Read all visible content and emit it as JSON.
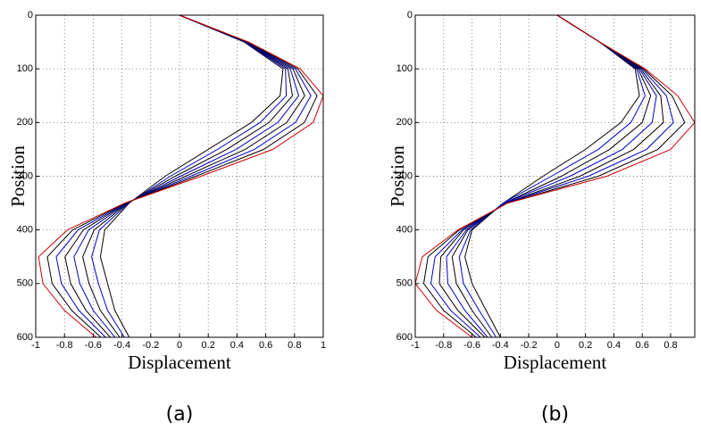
{
  "chart_data": [
    {
      "type": "line",
      "caption": "(a)",
      "x_label": "Displacement",
      "y_label": "Position",
      "y": [
        0,
        50,
        100,
        150,
        200,
        250,
        300,
        350,
        400,
        450,
        500,
        550,
        600
      ],
      "xlim": [
        -1,
        1
      ],
      "ylim": [
        0,
        600
      ],
      "y_reversed": true,
      "grid": true,
      "xticks": [
        -1,
        -0.8,
        -0.6,
        -0.4,
        -0.2,
        0,
        0.2,
        0.4,
        0.6,
        0.8,
        1
      ],
      "yticks": [
        0,
        100,
        200,
        300,
        400,
        500,
        600
      ],
      "series": [
        {
          "color": "#000000",
          "values": [
            0,
            0.45,
            0.72,
            0.7,
            0.5,
            0.2,
            -0.1,
            -0.35,
            -0.52,
            -0.55,
            -0.5,
            -0.45,
            -0.35
          ]
        },
        {
          "color": "#0000c8",
          "values": [
            0,
            0.454,
            0.737,
            0.743,
            0.561,
            0.264,
            -0.064,
            -0.354,
            -0.557,
            -0.611,
            -0.564,
            -0.5,
            -0.383
          ]
        },
        {
          "color": "#000000",
          "values": [
            0,
            0.459,
            0.754,
            0.786,
            0.623,
            0.329,
            -0.029,
            -0.359,
            -0.594,
            -0.673,
            -0.629,
            -0.55,
            -0.416
          ]
        },
        {
          "color": "#0000c8",
          "values": [
            0,
            0.463,
            0.771,
            0.829,
            0.684,
            0.393,
            0.007,
            -0.363,
            -0.632,
            -0.734,
            -0.693,
            -0.6,
            -0.449
          ]
        },
        {
          "color": "#000000",
          "values": [
            0,
            0.467,
            0.789,
            0.871,
            0.746,
            0.457,
            0.043,
            -0.367,
            -0.669,
            -0.796,
            -0.757,
            -0.65,
            -0.481
          ]
        },
        {
          "color": "#0000c8",
          "values": [
            0,
            0.471,
            0.806,
            0.914,
            0.807,
            0.521,
            0.079,
            -0.371,
            -0.706,
            -0.857,
            -0.821,
            -0.7,
            -0.514
          ]
        },
        {
          "color": "#000000",
          "values": [
            0,
            0.476,
            0.823,
            0.957,
            0.869,
            0.586,
            0.114,
            -0.376,
            -0.743,
            -0.919,
            -0.886,
            -0.75,
            -0.547
          ]
        },
        {
          "color": "#d00000",
          "values": [
            0,
            0.48,
            0.84,
            1.0,
            0.93,
            0.65,
            0.15,
            -0.38,
            -0.78,
            -0.98,
            -0.95,
            -0.8,
            -0.58
          ]
        }
      ]
    },
    {
      "type": "line",
      "caption": "(b)",
      "x_label": "Displacement",
      "y_label": "Position",
      "y": [
        0,
        50,
        100,
        150,
        200,
        250,
        300,
        350,
        400,
        450,
        500,
        550,
        600
      ],
      "xlim": [
        -1,
        0.97
      ],
      "ylim": [
        0,
        600
      ],
      "y_reversed": true,
      "grid": true,
      "xticks": [
        -1,
        -0.8,
        -0.6,
        -0.4,
        -0.2,
        0,
        0.2,
        0.4,
        0.6,
        0.8
      ],
      "yticks": [
        0,
        100,
        200,
        300,
        400,
        500,
        600
      ],
      "series": [
        {
          "color": "#000000",
          "values": [
            0,
            0.3,
            0.55,
            0.58,
            0.45,
            0.2,
            -0.1,
            -0.38,
            -0.6,
            -0.65,
            -0.6,
            -0.5,
            -0.4
          ]
        },
        {
          "color": "#0000c8",
          "values": [
            0,
            0.3,
            0.56,
            0.62,
            0.52,
            0.29,
            -0.04,
            -0.38,
            -0.61,
            -0.69,
            -0.66,
            -0.55,
            -0.43
          ]
        },
        {
          "color": "#000000",
          "values": [
            0,
            0.3,
            0.57,
            0.66,
            0.6,
            0.37,
            0.03,
            -0.37,
            -0.63,
            -0.74,
            -0.71,
            -0.6,
            -0.46
          ]
        },
        {
          "color": "#0000c8",
          "values": [
            0,
            0.3,
            0.58,
            0.7,
            0.67,
            0.46,
            0.09,
            -0.37,
            -0.64,
            -0.78,
            -0.77,
            -0.65,
            -0.49
          ]
        },
        {
          "color": "#000000",
          "values": [
            0,
            0.3,
            0.59,
            0.73,
            0.75,
            0.54,
            0.16,
            -0.36,
            -0.66,
            -0.82,
            -0.83,
            -0.7,
            -0.51
          ]
        },
        {
          "color": "#0000c8",
          "values": [
            0,
            0.3,
            0.6,
            0.77,
            0.82,
            0.63,
            0.22,
            -0.36,
            -0.67,
            -0.86,
            -0.89,
            -0.75,
            -0.54
          ]
        },
        {
          "color": "#000000",
          "values": [
            0,
            0.3,
            0.61,
            0.81,
            0.9,
            0.71,
            0.29,
            -0.35,
            -0.69,
            -0.91,
            -0.94,
            -0.8,
            -0.57
          ]
        },
        {
          "color": "#d00000",
          "values": [
            0,
            0.3,
            0.62,
            0.85,
            0.97,
            0.8,
            0.35,
            -0.35,
            -0.7,
            -0.95,
            -1.0,
            -0.85,
            -0.6
          ]
        }
      ]
    }
  ]
}
